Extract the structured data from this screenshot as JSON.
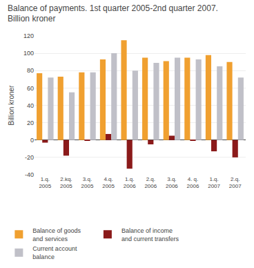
{
  "chart_data": {
    "type": "bar",
    "title": "Balance of payments. 1st quarter 2005-2nd quarter 2007.",
    "subtitle": "Billion kroner",
    "ylabel": "Billion kroner",
    "categories": [
      "1.q.\n2005",
      "2.kq.\n2005",
      "3.q.\n2005",
      "4.q.\n2005",
      "1.q.\n2006",
      "2.q.\n2006",
      "3.q.\n2006",
      "4. q.\n2006",
      "1.q.\n2007",
      "2.q.\n2007"
    ],
    "series": [
      {
        "name": "Balance of goods\nand services",
        "color": "#f0a030",
        "values": [
          77,
          73,
          78,
          93,
          115,
          95,
          91,
          95,
          98,
          90
        ]
      },
      {
        "name": "Balance of income\nand current transfers",
        "color": "#8b1a1a",
        "values": [
          -3,
          -18,
          -1,
          7,
          -33,
          -5,
          5,
          -1,
          -13,
          -20
        ]
      },
      {
        "name": "Current account\nbalance",
        "color": "#c0c0c8",
        "values": [
          72,
          55,
          78,
          100,
          80,
          89,
          95,
          93,
          85,
          72
        ]
      }
    ],
    "ylim": [
      -40,
      120
    ],
    "yticks": [
      -40,
      -20,
      0,
      20,
      40,
      60,
      80,
      100,
      120
    ],
    "grid": true,
    "legend": "bottom"
  }
}
